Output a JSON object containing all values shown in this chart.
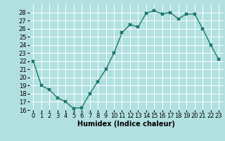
{
  "x": [
    0,
    1,
    2,
    3,
    4,
    5,
    6,
    7,
    8,
    9,
    10,
    11,
    12,
    13,
    14,
    15,
    16,
    17,
    18,
    19,
    20,
    21,
    22,
    23
  ],
  "y": [
    22,
    19,
    18.5,
    17.5,
    17,
    16.2,
    16.3,
    18,
    19.5,
    21,
    23,
    25.5,
    26.5,
    26.2,
    27.9,
    28.2,
    27.8,
    28,
    27.2,
    27.8,
    27.8,
    26,
    24,
    22.2
  ],
  "line_color": "#1a7a6e",
  "marker_color": "#1a7a6e",
  "bg_color": "#b2e0e0",
  "grid_color": "#a0d0d0",
  "xlabel": "Humidex (Indice chaleur)",
  "ylim": [
    16,
    29
  ],
  "xlim": [
    -0.5,
    23.5
  ],
  "yticks": [
    16,
    17,
    18,
    19,
    20,
    21,
    22,
    23,
    24,
    25,
    26,
    27,
    28
  ],
  "xticks": [
    0,
    1,
    2,
    3,
    4,
    5,
    6,
    7,
    8,
    9,
    10,
    11,
    12,
    13,
    14,
    15,
    16,
    17,
    18,
    19,
    20,
    21,
    22,
    23
  ],
  "xlabel_fontsize": 7,
  "tick_fontsize": 6,
  "marker_size": 2.5,
  "line_width": 1.0
}
